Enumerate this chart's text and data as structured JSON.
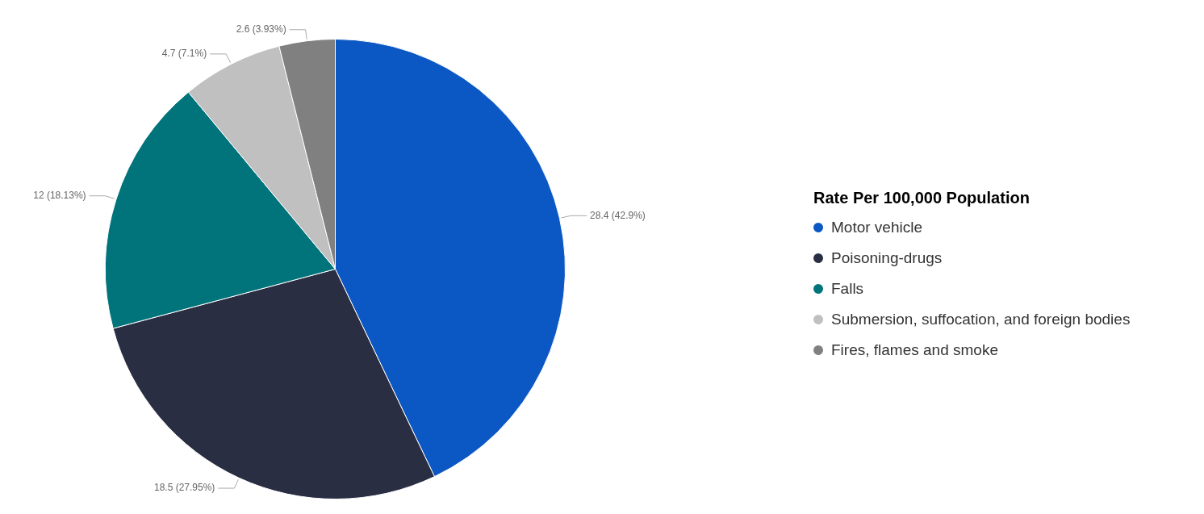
{
  "chart_data": {
    "type": "pie",
    "legend_title": "Rate Per 100,000 Population",
    "legend": "right",
    "categories": [
      "Motor vehicle",
      "Poisoning-drugs",
      "Falls",
      "Submersion, suffocation, and foreign bodies",
      "Fires, flames and smoke"
    ],
    "values": [
      28.4,
      18.5,
      12,
      4.7,
      2.6
    ],
    "colors": [
      "#0b57c4",
      "#2a2e42",
      "#01737b",
      "#c0c0c0",
      "#808080"
    ],
    "value_labels": [
      "28.4 (42.9%)",
      "18.5 (27.95%)",
      "12 (18.13%)",
      "4.7 (7.1%)",
      "2.6 (3.93%)"
    ]
  }
}
